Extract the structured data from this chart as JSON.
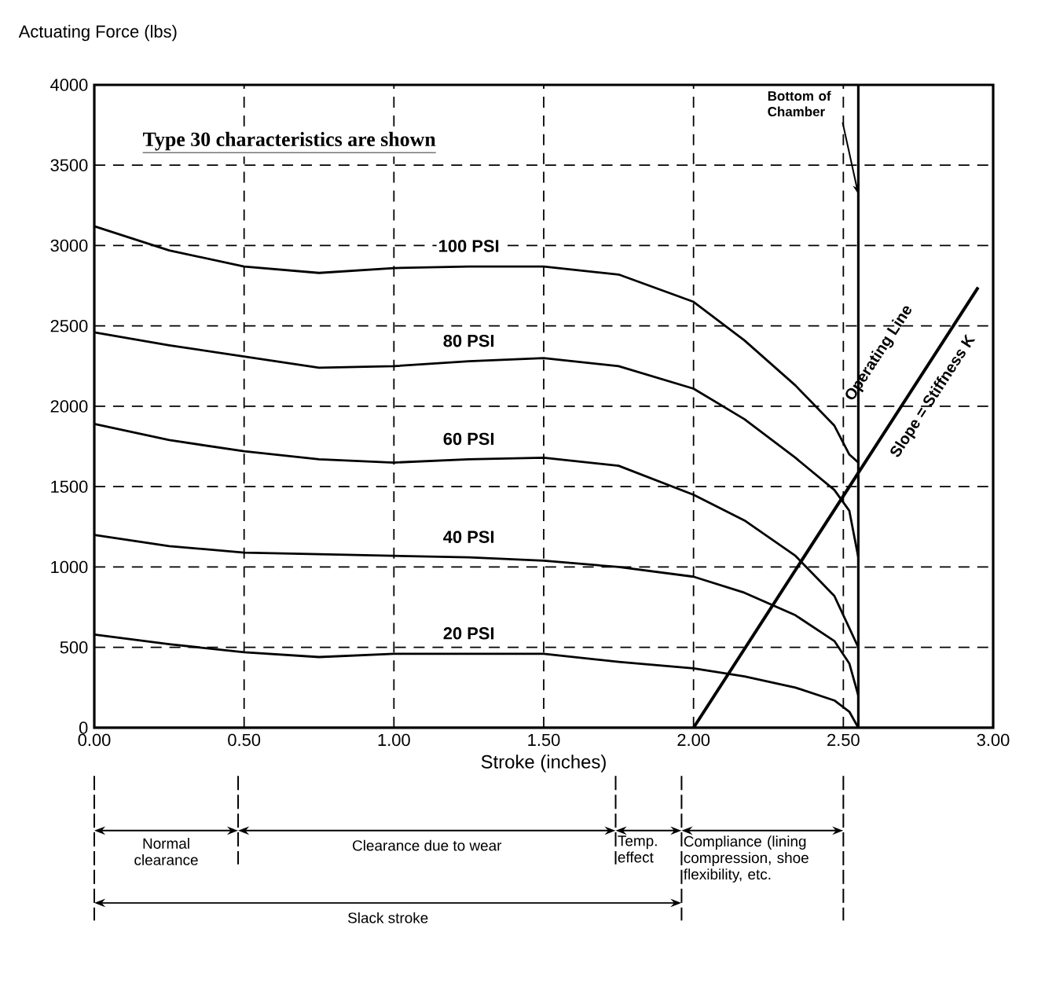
{
  "chart_data": {
    "type": "line",
    "xlabel": "Stroke (inches)",
    "ylabel": "Actuating Force (lbs)",
    "x": [
      0,
      0.25,
      0.5,
      0.75,
      1.0,
      1.25,
      1.5,
      1.75,
      2.0,
      2.17,
      2.34,
      2.47,
      2.52,
      2.55
    ],
    "series": [
      {
        "name": "100 PSI",
        "color": "#000000",
        "values": [
          3120,
          2970,
          2870,
          2830,
          2860,
          2870,
          2870,
          2820,
          2650,
          2410,
          2130,
          1880,
          1700,
          1650
        ]
      },
      {
        "name": "80 PSI",
        "color": "#000000",
        "values": [
          2460,
          2380,
          2310,
          2240,
          2250,
          2280,
          2300,
          2250,
          2110,
          1920,
          1680,
          1480,
          1350,
          1060
        ]
      },
      {
        "name": "60 PSI",
        "color": "#000000",
        "values": [
          1890,
          1790,
          1720,
          1670,
          1650,
          1670,
          1680,
          1630,
          1450,
          1290,
          1070,
          820,
          620,
          500
        ]
      },
      {
        "name": "40 PSI",
        "color": "#000000",
        "values": [
          1200,
          1130,
          1090,
          1080,
          1070,
          1060,
          1040,
          1000,
          940,
          840,
          700,
          540,
          400,
          200
        ]
      },
      {
        "name": "20 PSI",
        "color": "#000000",
        "values": [
          580,
          520,
          470,
          440,
          460,
          460,
          460,
          410,
          370,
          320,
          250,
          170,
          100,
          0
        ]
      },
      {
        "color": "#000000",
        "x": [
          2.0,
          2.95
        ],
        "values": [
          0,
          2740
        ]
      }
    ],
    "xlim": [
      0,
      3
    ],
    "ylim": [
      0,
      4000
    ],
    "xticks": [
      {
        "value": 0,
        "label": "0.00"
      },
      {
        "value": 0.5,
        "label": "0.50"
      },
      {
        "value": 1,
        "label": "1.00"
      },
      {
        "value": 1.5,
        "label": "1.50"
      },
      {
        "value": 2,
        "label": "2.00"
      },
      {
        "value": 2.5,
        "label": "2.50"
      },
      {
        "value": 3,
        "label": "3.00"
      }
    ],
    "yticks": [
      0,
      500,
      1000,
      1500,
      2000,
      2500,
      3000,
      3500,
      4000
    ],
    "grid": true,
    "line_style": "solid",
    "ref_lines": [
      {
        "axis": "x",
        "value": 2.55,
        "label": "Bottom of Chamber",
        "color": "#000000"
      }
    ],
    "annotations": [
      "Type 30 characteristics are shown",
      "Operating Line",
      "Slope = Stiffness K",
      "Normal clearance",
      "Clearance due to wear",
      "Temp. effect",
      "Compliance (lining compression, shoe flexibility, etc.",
      "Slack stroke"
    ]
  }
}
